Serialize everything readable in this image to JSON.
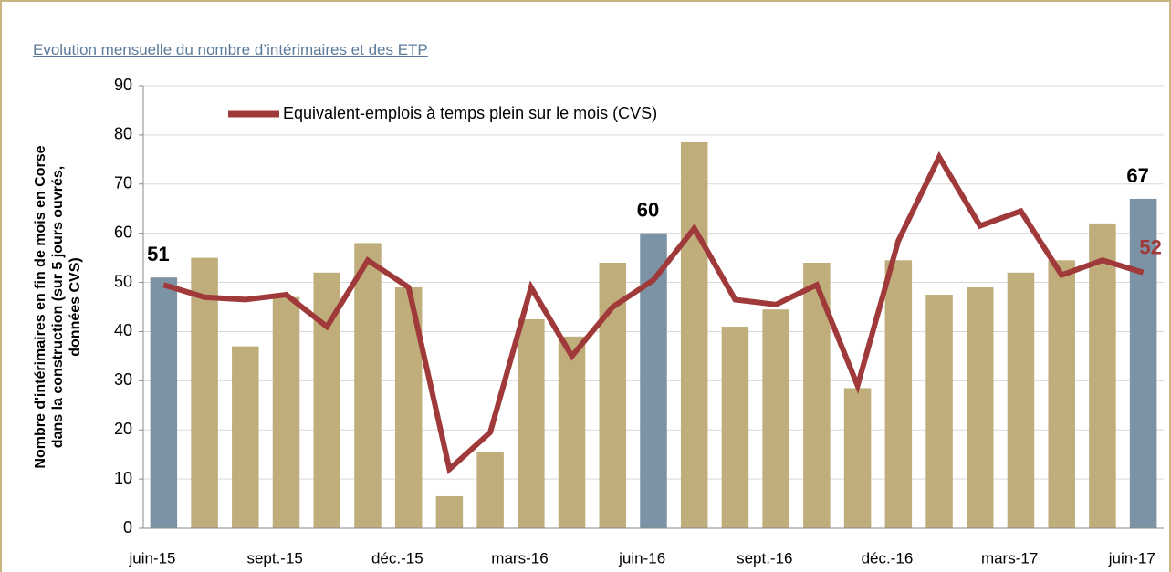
{
  "chart_data": {
    "type": "combo",
    "title": "Evolution mensuelle du nombre d’intérimaires et des ETP",
    "ylabel": [
      "Nombre d'intérimaires en fin de mois en Corse",
      "dans la construction (sur 5 jours ouvrés,",
      "données CVS)"
    ],
    "categories": [
      "juin-15",
      null,
      null,
      "sept.-15",
      null,
      null,
      "déc.-15",
      null,
      null,
      "mars-16",
      null,
      null,
      "juin-16",
      null,
      null,
      "sept.-16",
      null,
      null,
      "déc.-16",
      null,
      null,
      "mars-17",
      null,
      null,
      "juin-17"
    ],
    "ylim": [
      0,
      90
    ],
    "yticks": [
      0,
      10,
      20,
      30,
      40,
      50,
      60,
      70,
      80,
      90
    ],
    "grid": true,
    "legend": "top-left",
    "series": [
      {
        "type": "bar",
        "values": [
          51,
          55,
          37,
          47,
          52,
          58,
          49,
          6.5,
          15.5,
          42.5,
          39,
          54,
          60,
          78.5,
          41,
          44.5,
          54,
          28.5,
          54.5,
          47.5,
          49,
          52,
          54.5,
          62,
          67
        ],
        "colors": [
          "#7b93a4",
          "#bfae7c",
          "#bfae7c",
          "#bfae7c",
          "#bfae7c",
          "#bfae7c",
          "#bfae7c",
          "#bfae7c",
          "#bfae7c",
          "#bfae7c",
          "#bfae7c",
          "#bfae7c",
          "#7b93a4",
          "#bfae7c",
          "#bfae7c",
          "#bfae7c",
          "#bfae7c",
          "#bfae7c",
          "#bfae7c",
          "#bfae7c",
          "#bfae7c",
          "#bfae7c",
          "#bfae7c",
          "#bfae7c",
          "#7b93a4"
        ],
        "value_labels": [
          "51",
          null,
          null,
          null,
          null,
          null,
          null,
          null,
          null,
          null,
          null,
          null,
          "60",
          null,
          null,
          null,
          null,
          null,
          null,
          null,
          null,
          null,
          null,
          null,
          "67"
        ]
      },
      {
        "type": "line",
        "name": "Equivalent-emplois à temps plein sur le mois (CVS)",
        "color": "#a0393a",
        "values": [
          49.5,
          47,
          46.5,
          47.5,
          41,
          54.5,
          49,
          12,
          19.5,
          49,
          35,
          45,
          50.5,
          61,
          46.5,
          45.5,
          49.5,
          29,
          58.5,
          75.5,
          61.5,
          64.5,
          51.5,
          54.5,
          52
        ],
        "value_labels": [
          null,
          null,
          null,
          null,
          null,
          null,
          null,
          null,
          null,
          null,
          null,
          null,
          null,
          null,
          null,
          null,
          null,
          null,
          null,
          null,
          null,
          null,
          null,
          null,
          "52"
        ]
      }
    ]
  }
}
